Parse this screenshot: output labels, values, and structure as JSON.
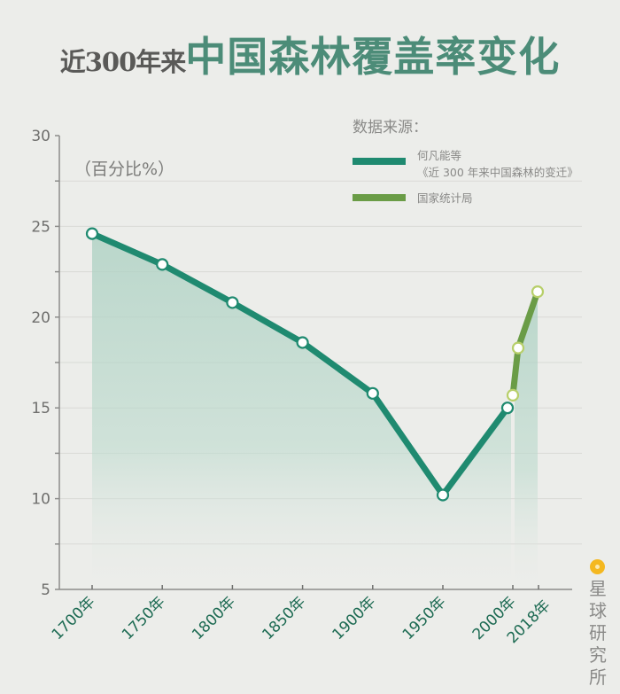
{
  "title": {
    "prefix": "近300年来",
    "main": "中国森林覆盖率变化"
  },
  "unit_label": "（百分比%）",
  "legend": {
    "title": "数据来源：",
    "items": [
      {
        "line1": "何凡能等",
        "line2": "《近 300 年来中国森林的变迁》",
        "color": "#1f8a70"
      },
      {
        "line1": "国家统计局",
        "line2": "",
        "color": "#6a9c46"
      }
    ]
  },
  "y_ticks": [
    "30",
    "25",
    "20",
    "15",
    "10",
    "5"
  ],
  "x_ticks": [
    "1700年",
    "1750年",
    "1800年",
    "1850年",
    "1900年",
    "1950年",
    "2000年",
    "2018年"
  ],
  "logo": {
    "text": "星球研究所",
    "color": "#f4b820"
  },
  "colors": {
    "series1": "#1f8a70",
    "series2": "#6a9c46",
    "fill": "#b9d8cc",
    "background": "#ecedea"
  },
  "chart_data": {
    "type": "line",
    "title": "近300年来中国森林覆盖率变化",
    "xlabel": "",
    "ylabel": "（百分比%）",
    "ylim": [
      5,
      30
    ],
    "yticks": [
      5,
      10,
      15,
      20,
      25,
      30
    ],
    "minor_gridlines_every": 2.5,
    "xticks": [
      "1700年",
      "1750年",
      "1800年",
      "1850年",
      "1900年",
      "1950年",
      "2000年",
      "2018年"
    ],
    "legend_position": "top-right",
    "series": [
      {
        "name": "何凡能等《近 300 年来中国森林的变迁》",
        "x": [
          1700,
          1750,
          1800,
          1850,
          1900,
          1950,
          2000
        ],
        "values": [
          24.6,
          22.9,
          20.8,
          18.6,
          15.8,
          10.2,
          15.0
        ]
      },
      {
        "name": "国家统计局",
        "x": [
          2000,
          2003,
          2018
        ],
        "values": [
          15.7,
          18.3,
          21.4
        ]
      }
    ]
  }
}
